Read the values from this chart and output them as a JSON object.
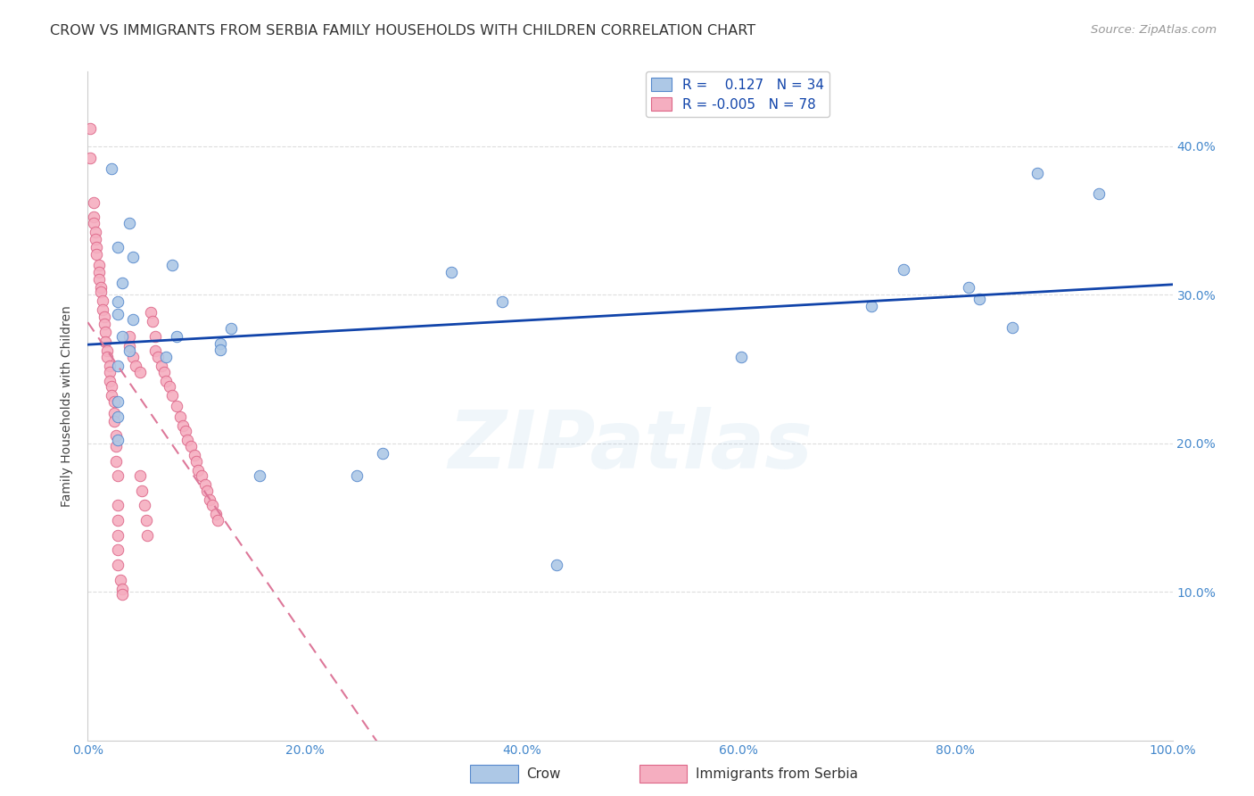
{
  "title": "CROW VS IMMIGRANTS FROM SERBIA FAMILY HOUSEHOLDS WITH CHILDREN CORRELATION CHART",
  "source": "Source: ZipAtlas.com",
  "ylabel": "Family Households with Children",
  "xlim": [
    0,
    1.0
  ],
  "ylim": [
    0,
    0.45
  ],
  "xtick_labels": [
    "0.0%",
    "20.0%",
    "40.0%",
    "60.0%",
    "80.0%",
    "100.0%"
  ],
  "xtick_vals": [
    0.0,
    0.2,
    0.4,
    0.6,
    0.8,
    1.0
  ],
  "ytick_labels": [
    "10.0%",
    "20.0%",
    "30.0%",
    "40.0%"
  ],
  "ytick_vals": [
    0.1,
    0.2,
    0.3,
    0.4
  ],
  "legend_crow_R": "0.127",
  "legend_crow_N": "34",
  "legend_serbia_R": "-0.005",
  "legend_serbia_N": "78",
  "crow_color": "#adc8e6",
  "serbia_color": "#f5aec0",
  "crow_edge_color": "#5588cc",
  "serbia_edge_color": "#dd6688",
  "trend_crow_color": "#1144aa",
  "trend_serbia_color": "#dd7799",
  "crow_points": [
    [
      0.022,
      0.385
    ],
    [
      0.038,
      0.348
    ],
    [
      0.028,
      0.332
    ],
    [
      0.042,
      0.325
    ],
    [
      0.032,
      0.308
    ],
    [
      0.078,
      0.32
    ],
    [
      0.028,
      0.295
    ],
    [
      0.042,
      0.283
    ],
    [
      0.082,
      0.272
    ],
    [
      0.028,
      0.287
    ],
    [
      0.032,
      0.272
    ],
    [
      0.132,
      0.277
    ],
    [
      0.038,
      0.262
    ],
    [
      0.072,
      0.258
    ],
    [
      0.028,
      0.252
    ],
    [
      0.028,
      0.228
    ],
    [
      0.122,
      0.267
    ],
    [
      0.122,
      0.263
    ],
    [
      0.028,
      0.218
    ],
    [
      0.028,
      0.202
    ],
    [
      0.158,
      0.178
    ],
    [
      0.248,
      0.178
    ],
    [
      0.272,
      0.193
    ],
    [
      0.335,
      0.315
    ],
    [
      0.382,
      0.295
    ],
    [
      0.432,
      0.118
    ],
    [
      0.602,
      0.258
    ],
    [
      0.722,
      0.292
    ],
    [
      0.752,
      0.317
    ],
    [
      0.812,
      0.305
    ],
    [
      0.822,
      0.297
    ],
    [
      0.852,
      0.278
    ],
    [
      0.875,
      0.382
    ],
    [
      0.932,
      0.368
    ]
  ],
  "serbia_points": [
    [
      0.002,
      0.412
    ],
    [
      0.002,
      0.392
    ],
    [
      0.005,
      0.362
    ],
    [
      0.005,
      0.352
    ],
    [
      0.005,
      0.348
    ],
    [
      0.007,
      0.342
    ],
    [
      0.007,
      0.337
    ],
    [
      0.008,
      0.332
    ],
    [
      0.008,
      0.327
    ],
    [
      0.01,
      0.32
    ],
    [
      0.01,
      0.315
    ],
    [
      0.01,
      0.31
    ],
    [
      0.012,
      0.305
    ],
    [
      0.012,
      0.302
    ],
    [
      0.014,
      0.296
    ],
    [
      0.014,
      0.29
    ],
    [
      0.015,
      0.285
    ],
    [
      0.015,
      0.28
    ],
    [
      0.016,
      0.275
    ],
    [
      0.016,
      0.268
    ],
    [
      0.018,
      0.262
    ],
    [
      0.018,
      0.258
    ],
    [
      0.02,
      0.252
    ],
    [
      0.02,
      0.248
    ],
    [
      0.02,
      0.242
    ],
    [
      0.022,
      0.238
    ],
    [
      0.022,
      0.232
    ],
    [
      0.024,
      0.228
    ],
    [
      0.024,
      0.22
    ],
    [
      0.024,
      0.215
    ],
    [
      0.026,
      0.205
    ],
    [
      0.026,
      0.198
    ],
    [
      0.026,
      0.188
    ],
    [
      0.028,
      0.178
    ],
    [
      0.028,
      0.158
    ],
    [
      0.028,
      0.148
    ],
    [
      0.028,
      0.138
    ],
    [
      0.028,
      0.128
    ],
    [
      0.028,
      0.118
    ],
    [
      0.03,
      0.108
    ],
    [
      0.032,
      0.102
    ],
    [
      0.032,
      0.098
    ],
    [
      0.038,
      0.272
    ],
    [
      0.038,
      0.265
    ],
    [
      0.042,
      0.258
    ],
    [
      0.044,
      0.252
    ],
    [
      0.048,
      0.248
    ],
    [
      0.048,
      0.178
    ],
    [
      0.05,
      0.168
    ],
    [
      0.052,
      0.158
    ],
    [
      0.054,
      0.148
    ],
    [
      0.055,
      0.138
    ],
    [
      0.058,
      0.288
    ],
    [
      0.06,
      0.282
    ],
    [
      0.062,
      0.272
    ],
    [
      0.062,
      0.262
    ],
    [
      0.065,
      0.258
    ],
    [
      0.068,
      0.252
    ],
    [
      0.07,
      0.248
    ],
    [
      0.072,
      0.242
    ],
    [
      0.075,
      0.238
    ],
    [
      0.078,
      0.232
    ],
    [
      0.082,
      0.225
    ],
    [
      0.085,
      0.218
    ],
    [
      0.088,
      0.212
    ],
    [
      0.09,
      0.208
    ],
    [
      0.092,
      0.202
    ],
    [
      0.095,
      0.198
    ],
    [
      0.098,
      0.192
    ],
    [
      0.1,
      0.188
    ],
    [
      0.102,
      0.182
    ],
    [
      0.105,
      0.178
    ],
    [
      0.108,
      0.172
    ],
    [
      0.11,
      0.168
    ],
    [
      0.112,
      0.162
    ],
    [
      0.115,
      0.158
    ],
    [
      0.118,
      0.152
    ],
    [
      0.12,
      0.148
    ]
  ],
  "background_color": "#ffffff",
  "grid_color": "#dddddd",
  "marker_size": 9,
  "title_fontsize": 11.5,
  "axis_label_fontsize": 10,
  "tick_fontsize": 10,
  "legend_fontsize": 11,
  "source_fontsize": 9.5,
  "watermark_text": "ZIPatlas",
  "watermark_alpha": 0.12,
  "watermark_fontsize": 65
}
